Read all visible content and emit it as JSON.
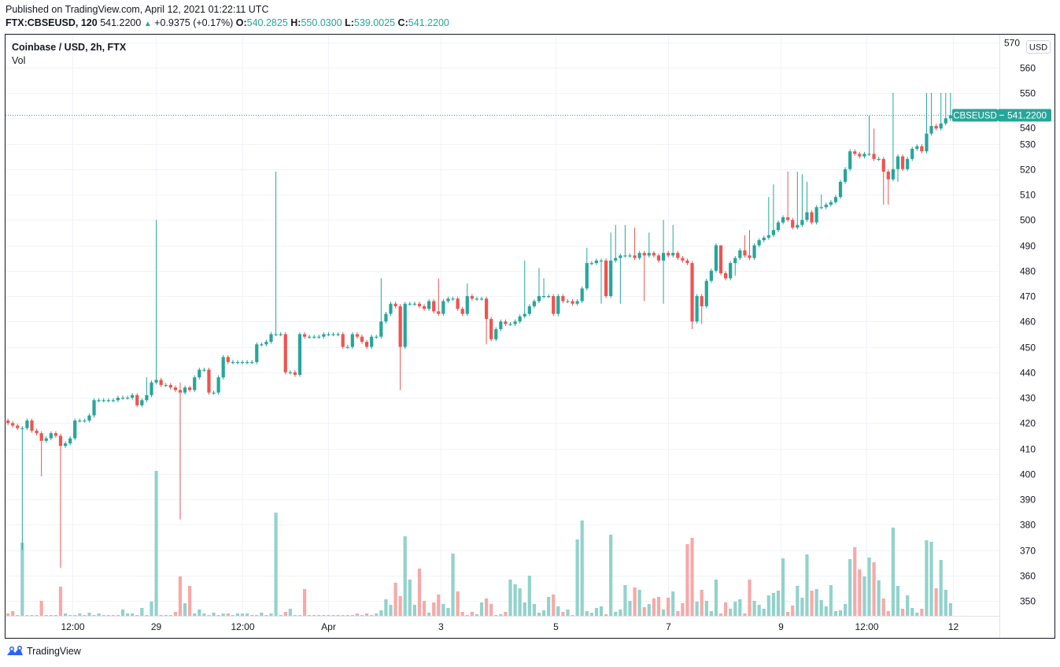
{
  "header": {
    "published": "Published on TradingView.com, April 12, 2021 01:22:11 UTC",
    "symbol": "FTX:CBSEUSD, 120",
    "last": "541.2200",
    "change": "+0.9375 (+0.17%)",
    "o_label": "O:",
    "o": "540.2825",
    "h_label": "H:",
    "h": "550.0300",
    "l_label": "L:",
    "l": "539.0025",
    "c_label": "C:",
    "c": "541.2200"
  },
  "legend": {
    "title": "Coinbase / USD, 2h, FTX",
    "volume": "Vol"
  },
  "currency_badge": "USD",
  "price_tag": {
    "symbol": "CBSEUSD",
    "value": "541.2200"
  },
  "logo": "TradingView",
  "colors": {
    "up": "#26a69a",
    "down": "#ef5350",
    "up_vol": "#92d2cc",
    "down_vol": "#f7a9a7",
    "grid": "#f0f3fa"
  },
  "chart_data": {
    "type": "candlestick",
    "interval": "2h",
    "first_open": 421,
    "close": [
      420,
      419,
      418,
      418,
      421,
      417,
      416,
      413,
      414,
      416,
      415,
      411,
      412,
      414,
      421,
      421,
      421,
      423,
      429,
      429,
      429,
      429,
      429,
      430,
      430,
      430,
      431,
      427,
      429,
      431,
      436,
      437,
      435,
      435,
      434,
      433,
      432,
      434,
      433,
      438,
      441,
      441,
      432,
      432,
      438,
      446,
      444,
      444,
      444,
      444,
      444,
      444,
      451,
      451,
      452,
      455,
      455,
      455,
      440,
      440,
      439,
      455,
      454,
      454,
      454,
      454,
      455,
      455,
      455,
      455,
      450,
      450,
      455,
      454,
      452,
      450,
      454,
      454,
      460,
      463,
      467,
      466,
      450,
      467,
      467,
      467,
      466,
      465,
      468,
      464,
      463,
      468,
      469,
      469,
      465,
      463,
      470,
      469,
      469,
      469,
      461,
      453,
      457,
      460,
      459,
      459,
      460,
      462,
      463,
      466,
      468,
      470,
      470,
      470,
      463,
      470,
      468,
      468,
      467,
      468,
      473,
      483,
      483,
      484,
      484,
      470,
      484,
      485,
      486,
      486,
      486,
      485,
      487,
      486,
      487,
      486,
      484,
      487,
      486,
      487,
      485,
      484,
      483,
      460,
      470,
      466,
      476,
      480,
      490,
      479,
      477,
      483,
      485,
      488,
      486,
      485,
      490,
      492,
      493,
      494,
      496,
      499,
      501,
      500,
      497,
      498,
      500,
      503,
      499,
      505,
      505,
      506,
      507,
      509,
      515,
      520,
      527,
      526,
      525,
      526,
      526,
      524,
      524,
      519,
      516,
      520,
      525,
      520,
      524,
      528,
      529,
      527,
      534,
      537,
      536,
      538,
      540,
      541.22
    ],
    "high_overrides": {
      "29": 438,
      "31": 500,
      "36": 436,
      "56": 519,
      "78": 477,
      "90": 477,
      "96": 475,
      "108": 484,
      "111": 481,
      "112": 477,
      "121": 489,
      "126": 495,
      "127": 498,
      "129": 498,
      "131": 497,
      "134": 495,
      "137": 500,
      "139": 498,
      "149": 490,
      "154": 494,
      "155": 496,
      "159": 509,
      "160": 514,
      "163": 519,
      "165": 519,
      "166": 518,
      "167": 515,
      "170": 510,
      "180": 541,
      "181": 536,
      "185": 550,
      "192": 550,
      "193": 550,
      "195": 550,
      "196": 550,
      "197": 550.03
    },
    "low_overrides": {
      "3": 370,
      "7": 399,
      "11": 363,
      "36": 382,
      "82": 433,
      "100": 451,
      "115": 462,
      "124": 467,
      "128": 467,
      "133": 468,
      "137": 467,
      "143": 457,
      "145": 459,
      "152": 478,
      "183": 506,
      "184": 506,
      "186": 515,
      "197": 539
    },
    "volume": [
      3,
      6,
      1,
      93,
      1,
      1,
      1,
      19,
      1,
      1,
      1,
      37,
      3,
      1,
      1,
      3,
      1,
      4,
      1,
      3,
      1,
      1,
      1,
      1,
      8,
      3,
      3,
      1,
      10,
      1,
      18,
      184,
      1,
      1,
      1,
      5,
      50,
      16,
      38,
      3,
      8,
      3,
      1,
      4,
      1,
      3,
      3,
      1,
      3,
      3,
      3,
      1,
      1,
      4,
      1,
      3,
      131,
      1,
      5,
      9,
      1,
      1,
      34,
      1,
      1,
      1,
      1,
      1,
      1,
      1,
      1,
      1,
      1,
      3,
      1,
      3,
      1,
      3,
      7,
      21,
      14,
      42,
      25,
      101,
      46,
      14,
      60,
      19,
      4,
      17,
      27,
      15,
      10,
      79,
      31,
      5,
      1,
      5,
      2,
      17,
      22,
      15,
      1,
      2,
      5,
      46,
      40,
      35,
      17,
      51,
      15,
      4,
      7,
      24,
      27,
      12,
      5,
      8,
      1,
      97,
      121,
      6,
      4,
      10,
      12,
      2,
      103,
      5,
      8,
      39,
      19,
      36,
      33,
      11,
      15,
      22,
      24,
      8,
      23,
      31,
      6,
      16,
      91,
      99,
      18,
      33,
      19,
      6,
      46,
      3,
      17,
      9,
      18,
      21,
      3,
      46,
      19,
      14,
      9,
      26,
      29,
      32,
      73,
      5,
      13,
      38,
      23,
      78,
      32,
      34,
      20,
      12,
      39,
      6,
      7,
      15,
      72,
      87,
      59,
      50,
      74,
      68,
      45,
      22,
      6,
      112,
      38,
      9,
      26,
      10,
      4,
      9,
      96,
      94,
      35,
      71,
      33,
      16
    ],
    "y_ticks": [
      350,
      360,
      370,
      380,
      390,
      400,
      410,
      420,
      430,
      440,
      450,
      460,
      470,
      480,
      490,
      500,
      510,
      520,
      530,
      540,
      550,
      560,
      570
    ],
    "ylim": [
      344,
      573
    ],
    "x_ticks": [
      {
        "label": "12:00",
        "bar": 13.5
      },
      {
        "label": "29",
        "bar": 31
      },
      {
        "label": "12:00",
        "bar": 49
      },
      {
        "label": "Apr",
        "bar": 67
      },
      {
        "label": "3",
        "bar": 90.5
      },
      {
        "label": "5",
        "bar": 114.5
      },
      {
        "label": "7",
        "bar": 138
      },
      {
        "label": "9",
        "bar": 161.5
      },
      {
        "label": "12:00",
        "bar": 179.5
      },
      {
        "label": "12",
        "bar": 197.5
      }
    ],
    "last_price": 541.22
  }
}
